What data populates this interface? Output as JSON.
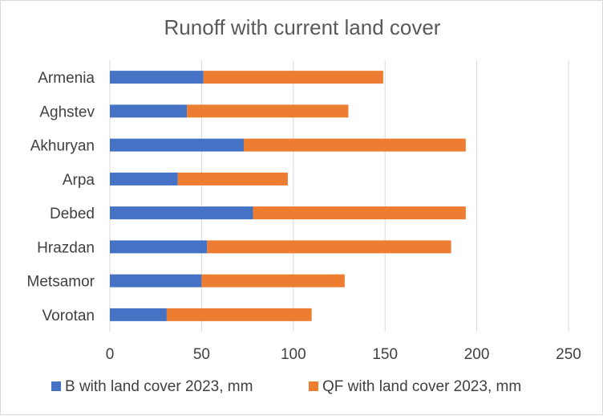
{
  "chart_data": {
    "type": "bar",
    "orientation": "horizontal",
    "stacked": true,
    "title": "Runoff with current land cover",
    "xlabel": "",
    "ylabel": "",
    "categories": [
      "Armenia",
      "Aghstev",
      "Akhuryan",
      "Arpa",
      "Debed",
      "Hrazdan",
      "Metsamor",
      "Vorotan"
    ],
    "series": [
      {
        "name": "B with land cover 2023, mm",
        "color": "#4472C4",
        "values": [
          51,
          42,
          73,
          37,
          78,
          53,
          50,
          31
        ]
      },
      {
        "name": "QF with land cover 2023, mm",
        "color": "#ED7D31",
        "values": [
          98,
          88,
          121,
          60,
          116,
          133,
          78,
          79
        ]
      }
    ],
    "xlim": [
      0,
      250
    ],
    "xticks": [
      "0",
      "50",
      "100",
      "150",
      "200",
      "250"
    ],
    "grid": true,
    "legend_position": "bottom"
  }
}
